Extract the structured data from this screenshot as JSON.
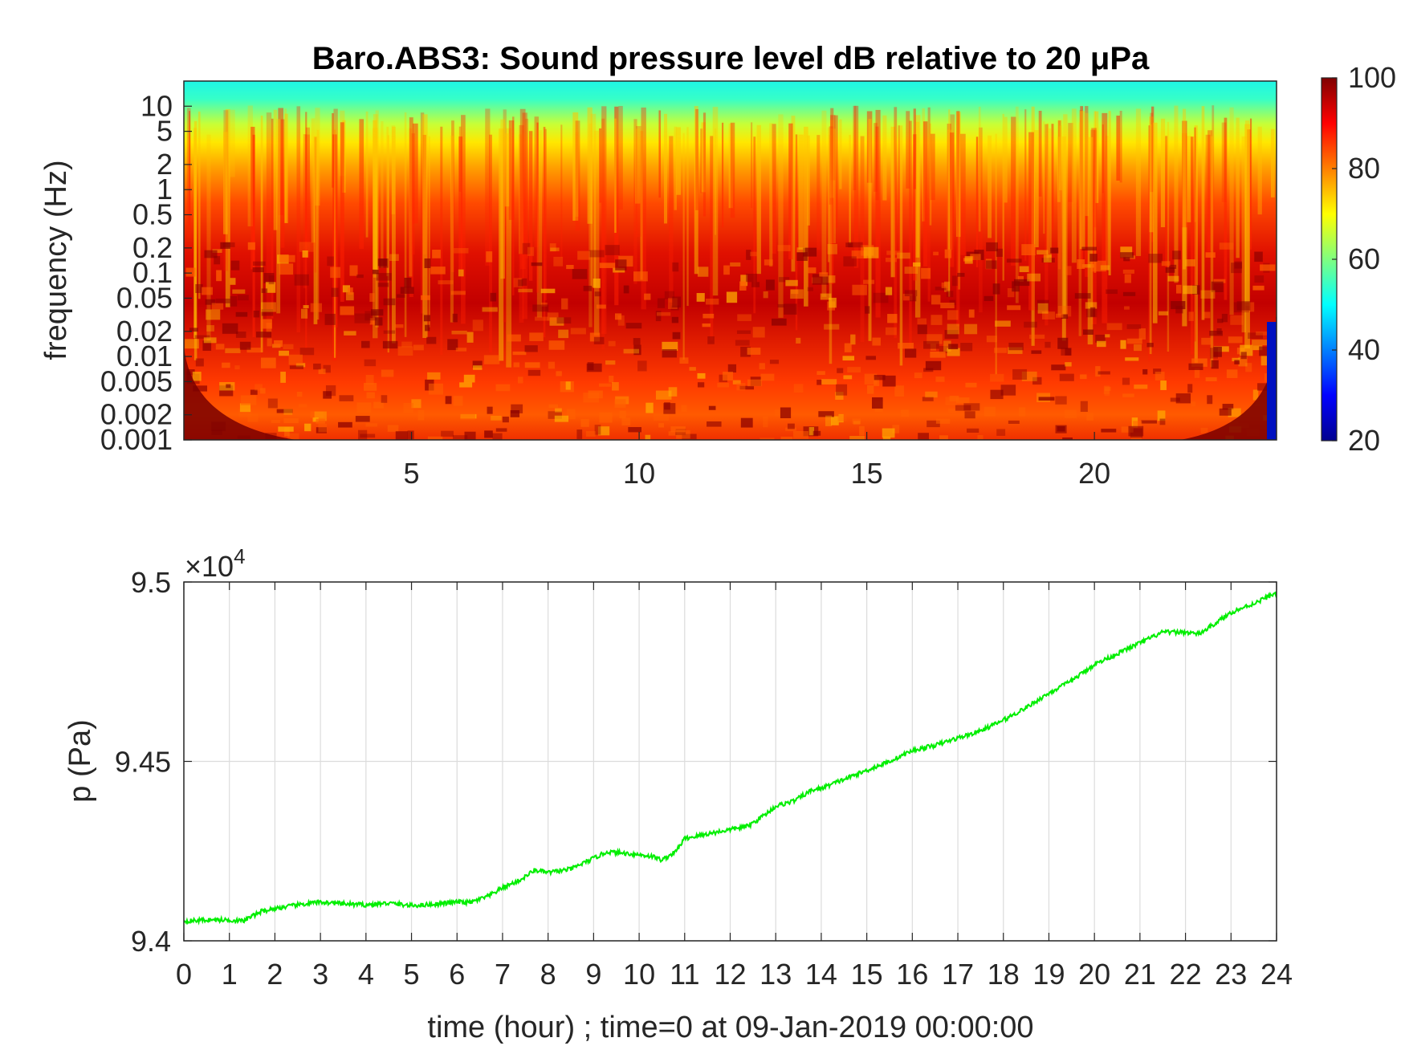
{
  "chart_data": [
    {
      "type": "heatmap",
      "title": "Baro.ABS3: Sound pressure level dB relative to 20 μPa",
      "ylabel": "frequency (Hz)",
      "xlabel": "",
      "x_ticks": [
        5,
        10,
        15,
        20
      ],
      "xlim": [
        0,
        24
      ],
      "y_scale": "log",
      "y_ticks": [
        "10",
        "5",
        "2",
        "1",
        "0.5",
        "0.2",
        "0.1",
        "0.05",
        "0.02",
        "0.01",
        "0.005",
        "0.002",
        "0.001"
      ],
      "ylim": [
        0.001,
        20
      ],
      "colormap": "jet",
      "colorbar": {
        "ticks": [
          100,
          80,
          60,
          40,
          20
        ],
        "range": [
          20,
          100
        ]
      },
      "description_levels": {
        "high_freq_top_db": 52,
        "mid_band_db": 75,
        "low_freq_db": 90
      }
    },
    {
      "type": "line",
      "xlabel": "time (hour) ; time=0 at 09-Jan-2019 00:00:00",
      "ylabel": "p (Pa)",
      "y_exponent_label": "×10",
      "y_exponent_power": "4",
      "x_ticks": [
        0,
        1,
        2,
        3,
        4,
        5,
        6,
        7,
        8,
        9,
        10,
        11,
        12,
        13,
        14,
        15,
        16,
        17,
        18,
        19,
        20,
        21,
        22,
        23,
        24
      ],
      "y_ticks": [
        "9.5",
        "9.45",
        "9.4"
      ],
      "xlim": [
        0,
        24
      ],
      "ylim": [
        9.4,
        9.5
      ],
      "grid": true,
      "series": [
        {
          "color": "#00ee00",
          "x": [
            0,
            0.5,
            1,
            1.3,
            1.7,
            2,
            2.5,
            3,
            3.5,
            4,
            4.5,
            5,
            5.5,
            6,
            6.3,
            6.7,
            7,
            7.4,
            7.7,
            8,
            8.5,
            9,
            9.3,
            9.6,
            10,
            10.3,
            10.5,
            10.8,
            11,
            11.5,
            12,
            12.4,
            12.8,
            13,
            13.4,
            13.8,
            14,
            14.5,
            15,
            15.5,
            16,
            16.5,
            17,
            17.5,
            18,
            18.5,
            19,
            19.5,
            20,
            20.5,
            21,
            21.5,
            22,
            22.3,
            22.6,
            23,
            23.5,
            24
          ],
          "y": [
            9.4055,
            9.4058,
            9.4058,
            9.4055,
            9.4082,
            9.409,
            9.41,
            9.4108,
            9.4103,
            9.41,
            9.4105,
            9.4098,
            9.4102,
            9.4108,
            9.4107,
            9.4125,
            9.4148,
            9.417,
            9.4197,
            9.419,
            9.42,
            9.423,
            9.4248,
            9.4245,
            9.424,
            9.4235,
            9.4225,
            9.4248,
            9.4285,
            9.4298,
            9.431,
            9.432,
            9.4355,
            9.4375,
            9.439,
            9.442,
            9.4425,
            9.445,
            9.4475,
            9.45,
            9.453,
            9.4545,
            9.4565,
            9.4585,
            9.4615,
            9.465,
            9.469,
            9.4725,
            9.477,
            9.48,
            9.483,
            9.486,
            9.486,
            9.4855,
            9.488,
            9.4915,
            9.494,
            9.497
          ]
        }
      ]
    }
  ]
}
